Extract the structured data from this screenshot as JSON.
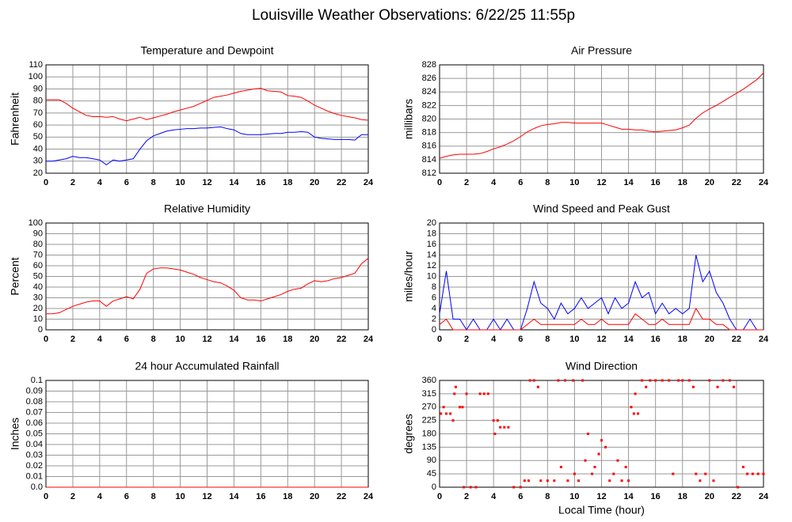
{
  "title": "Louisville Weather Observations: 6/22/25 11:55p",
  "chart_data": [
    {
      "type": "line",
      "title": "Temperature and Dewpoint",
      "ylabel": "Fahrenheit",
      "x": [
        0,
        0.5,
        1,
        1.5,
        2,
        2.5,
        3,
        3.5,
        4,
        4.5,
        5,
        5.5,
        6,
        6.5,
        7,
        7.5,
        8,
        8.5,
        9,
        9.5,
        10,
        10.5,
        11,
        11.5,
        12,
        12.5,
        13,
        13.5,
        14,
        14.5,
        15,
        15.5,
        16,
        16.5,
        17,
        17.5,
        18,
        18.5,
        19,
        19.5,
        20,
        20.5,
        21,
        21.5,
        22,
        22.5,
        23,
        23.5,
        24
      ],
      "series": [
        {
          "color": "#ff0000",
          "values": [
            81,
            81,
            81,
            78,
            74,
            71,
            68,
            67,
            67,
            66.5,
            67,
            65,
            63.5,
            65,
            66.5,
            64.5,
            66,
            67.5,
            69,
            71,
            72.5,
            74,
            75.5,
            78,
            80.5,
            83,
            84,
            85,
            86.5,
            88,
            89,
            90,
            90.5,
            88.5,
            88,
            87.5,
            84.5,
            84,
            83,
            80,
            76.5,
            74,
            71.5,
            69.5,
            68,
            67,
            66,
            64.5,
            64
          ]
        },
        {
          "color": "#0000ff",
          "values": [
            30,
            30,
            31,
            32,
            34,
            33,
            33,
            32,
            31,
            27,
            31,
            30,
            31,
            32,
            40,
            47,
            51,
            53,
            55,
            56,
            56.5,
            57,
            57,
            57.5,
            57.5,
            58,
            58.5,
            57,
            56,
            53,
            52,
            52,
            52,
            52.5,
            53,
            53,
            54,
            54,
            54.5,
            54,
            50,
            49,
            48.5,
            48,
            48,
            48,
            47.5,
            52,
            52
          ]
        }
      ],
      "xlim": [
        0,
        24
      ],
      "xticks": [
        0,
        2,
        4,
        6,
        8,
        10,
        12,
        14,
        16,
        18,
        20,
        22,
        24
      ],
      "ylim": [
        20,
        110
      ],
      "yticks": [
        20,
        30,
        40,
        50,
        60,
        70,
        80,
        90,
        100,
        110
      ],
      "grid": true
    },
    {
      "type": "line",
      "title": "Air Pressure",
      "ylabel": "millibars",
      "x": [
        0,
        0.5,
        1,
        1.5,
        2,
        2.5,
        3,
        3.5,
        4,
        4.5,
        5,
        5.5,
        6,
        6.5,
        7,
        7.5,
        8,
        8.5,
        9,
        9.5,
        10,
        10.5,
        11,
        11.5,
        12,
        12.5,
        13,
        13.5,
        14,
        14.5,
        15,
        15.5,
        16,
        16.5,
        17,
        17.5,
        18,
        18.5,
        19,
        19.5,
        20,
        20.5,
        21,
        21.5,
        22,
        22.5,
        23,
        23.5,
        24
      ],
      "series": [
        {
          "color": "#ff0000",
          "values": [
            814.2,
            814.5,
            814.7,
            814.8,
            814.8,
            814.8,
            814.9,
            815.2,
            815.6,
            815.9,
            816.3,
            816.8,
            817.4,
            818.1,
            818.6,
            819,
            819.2,
            819.3,
            819.5,
            819.5,
            819.4,
            819.4,
            819.4,
            819.4,
            819.4,
            819.1,
            818.8,
            818.5,
            818.5,
            818.4,
            818.4,
            818.2,
            818.1,
            818.2,
            818.3,
            818.4,
            818.7,
            819.1,
            820.1,
            820.9,
            821.5,
            822,
            822.6,
            823.2,
            823.8,
            824.4,
            825.1,
            825.8,
            826.8
          ]
        }
      ],
      "xlim": [
        0,
        24
      ],
      "xticks": [
        0,
        2,
        4,
        6,
        8,
        10,
        12,
        14,
        16,
        18,
        20,
        22,
        24
      ],
      "ylim": [
        812,
        828
      ],
      "yticks": [
        812,
        814,
        816,
        818,
        820,
        822,
        824,
        826,
        828
      ],
      "grid": true
    },
    {
      "type": "line",
      "title": "Relative Humidity",
      "ylabel": "Percent",
      "x": [
        0,
        0.5,
        1,
        1.5,
        2,
        2.5,
        3,
        3.5,
        4,
        4.5,
        5,
        5.5,
        6,
        6.5,
        7,
        7.5,
        8,
        8.5,
        9,
        9.5,
        10,
        10.5,
        11,
        11.5,
        12,
        12.5,
        13,
        13.5,
        14,
        14.5,
        15,
        15.5,
        16,
        16.5,
        17,
        17.5,
        18,
        18.5,
        19,
        19.5,
        20,
        20.5,
        21,
        21.5,
        22,
        22.5,
        23,
        23.5,
        24
      ],
      "series": [
        {
          "color": "#ff0000",
          "values": [
            15,
            15,
            16,
            19,
            22,
            24,
            26,
            27,
            27,
            22,
            27,
            29,
            31,
            29,
            38,
            53,
            57,
            58,
            58,
            57,
            56,
            54,
            52,
            49,
            47,
            45,
            44,
            41,
            37,
            30,
            28,
            28,
            27,
            29,
            31,
            33,
            36,
            38,
            39,
            43,
            46,
            45,
            46,
            48,
            49,
            51,
            53,
            62,
            67
          ]
        }
      ],
      "xlim": [
        0,
        24
      ],
      "xticks": [
        0,
        2,
        4,
        6,
        8,
        10,
        12,
        14,
        16,
        18,
        20,
        22,
        24
      ],
      "ylim": [
        0,
        100
      ],
      "yticks": [
        0,
        10,
        20,
        30,
        40,
        50,
        60,
        70,
        80,
        90,
        100
      ],
      "grid": true
    },
    {
      "type": "line",
      "title": "Wind Speed and Peak Gust",
      "ylabel": "miles/hour",
      "x": [
        0,
        0.5,
        1,
        1.5,
        2,
        2.5,
        3,
        3.5,
        4,
        4.5,
        5,
        5.5,
        6,
        6.5,
        7,
        7.5,
        8,
        8.5,
        9,
        9.5,
        10,
        10.5,
        11,
        11.5,
        12,
        12.5,
        13,
        13.5,
        14,
        14.5,
        15,
        15.5,
        16,
        16.5,
        17,
        17.5,
        18,
        18.5,
        19,
        19.5,
        20,
        20.5,
        21,
        21.5,
        22,
        22.5,
        23,
        23.5,
        24
      ],
      "series": [
        {
          "color": "#0000ff",
          "values": [
            3,
            11,
            2,
            2,
            0,
            2,
            0,
            0,
            2,
            0,
            2,
            0,
            0,
            4,
            9,
            5,
            4,
            2,
            5,
            3,
            4,
            6,
            4,
            5,
            6,
            3,
            6,
            4,
            5,
            9,
            6,
            7,
            3,
            5,
            3,
            4,
            3,
            4,
            14,
            9,
            11,
            7,
            5,
            2,
            0,
            0,
            2,
            0,
            0
          ]
        },
        {
          "color": "#ff0000",
          "values": [
            1,
            2,
            0,
            0,
            0,
            0,
            0,
            0,
            0,
            0,
            0,
            0,
            0,
            1,
            2,
            1,
            1,
            1,
            1,
            1,
            1,
            2,
            1,
            1,
            2,
            1,
            1,
            1,
            1,
            3,
            2,
            1,
            1,
            2,
            1,
            1,
            1,
            1,
            4,
            2,
            2,
            1,
            1,
            0,
            0,
            0,
            0,
            0,
            0
          ]
        }
      ],
      "xlim": [
        0,
        24
      ],
      "xticks": [
        0,
        2,
        4,
        6,
        8,
        10,
        12,
        14,
        16,
        18,
        20,
        22,
        24
      ],
      "ylim": [
        0,
        20
      ],
      "yticks": [
        0,
        2,
        4,
        6,
        8,
        10,
        12,
        14,
        16,
        18,
        20
      ],
      "grid": true
    },
    {
      "type": "line",
      "title": "24 hour Accumulated Rainfall",
      "ylabel": "Inches",
      "x": [
        0,
        24
      ],
      "series": [
        {
          "color": "#ff0000",
          "values": [
            0,
            0
          ]
        }
      ],
      "xlim": [
        0,
        24
      ],
      "xticks": [
        0,
        2,
        4,
        6,
        8,
        10,
        12,
        14,
        16,
        18,
        20,
        22,
        24
      ],
      "ylim": [
        0,
        0.1
      ],
      "yticks": [
        {
          "value": 0,
          "label": "0.0"
        },
        0.01,
        0.02,
        0.03,
        0.04,
        0.05,
        0.06,
        0.07,
        0.08,
        0.09,
        0.1
      ],
      "grid": true
    },
    {
      "type": "scatter",
      "title": "Wind Direction",
      "ylabel": "degrees",
      "xlabel": "Local Time (hour)",
      "x": [
        0.1,
        0.3,
        0.5,
        0.8,
        1,
        1.1,
        1.2,
        1.5,
        1.7,
        1.8,
        2,
        2.3,
        2.7,
        3,
        3.3,
        3.6,
        4,
        4.1,
        4.3,
        4.5,
        4.8,
        5.1,
        5.5,
        6,
        6.3,
        6.6,
        6.7,
        7,
        7.3,
        7.5,
        8,
        8.5,
        8.8,
        9,
        9.3,
        9.5,
        9.9,
        10,
        10.3,
        10.6,
        10.8,
        11,
        11.3,
        11.5,
        11.8,
        12,
        12.3,
        12.6,
        12.9,
        13.2,
        13.5,
        13.8,
        14,
        14.2,
        14.4,
        14.5,
        14.7,
        15,
        15.3,
        15.6,
        16,
        16.5,
        17,
        17.3,
        17.7,
        18,
        18.5,
        18.8,
        19,
        19.3,
        19.7,
        20,
        20.3,
        20.6,
        21,
        21.5,
        21.8,
        22.1,
        22.5,
        22.8,
        23.2,
        23.6,
        24
      ],
      "series": [
        {
          "color": "#ff0000",
          "values": [
            248,
            270,
            248,
            248,
            225,
            315,
            338,
            270,
            270,
            0,
            315,
            0,
            0,
            315,
            315,
            315,
            225,
            180,
            225,
            202,
            202,
            202,
            0,
            0,
            22,
            22,
            360,
            360,
            338,
            22,
            22,
            22,
            360,
            68,
            360,
            22,
            360,
            45,
            22,
            360,
            90,
            180,
            45,
            68,
            112,
            158,
            135,
            22,
            45,
            90,
            22,
            68,
            22,
            270,
            248,
            315,
            248,
            360,
            338,
            360,
            360,
            360,
            360,
            45,
            360,
            360,
            360,
            338,
            45,
            22,
            45,
            360,
            22,
            338,
            360,
            360,
            338,
            0,
            68,
            45,
            45,
            45,
            45
          ]
        }
      ],
      "xlim": [
        0,
        24
      ],
      "xticks": [
        0,
        2,
        4,
        6,
        8,
        10,
        12,
        14,
        16,
        18,
        20,
        22,
        24
      ],
      "ylim": [
        0,
        360
      ],
      "yticks": [
        0,
        45,
        90,
        135,
        180,
        225,
        270,
        315,
        360
      ],
      "grid": true
    }
  ]
}
